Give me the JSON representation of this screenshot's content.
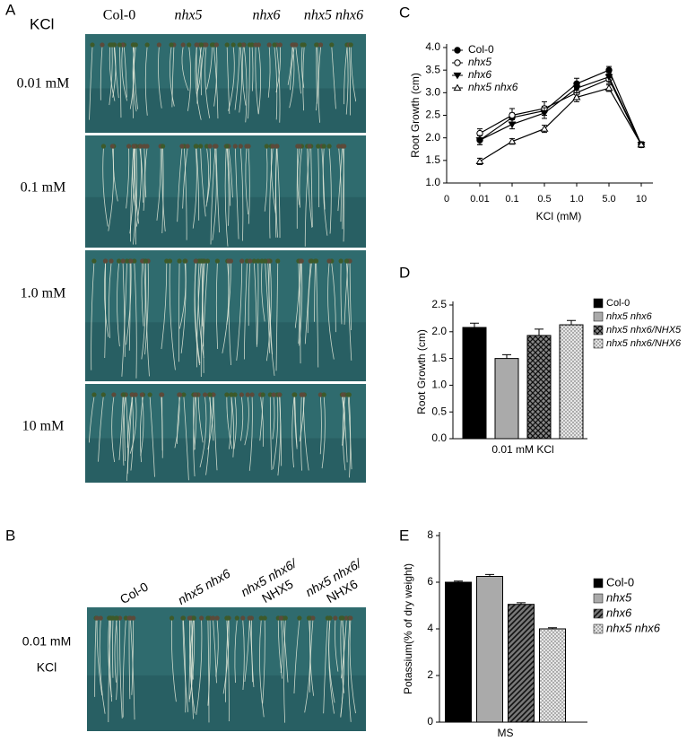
{
  "panel_a": {
    "label": "A",
    "row_header": "KCl",
    "columns": [
      "Col-0",
      "nhx5",
      "nhx6",
      "nhx5 nhx6"
    ],
    "rows": [
      "0.01 mM",
      "0.1 mM",
      "1.0 mM",
      "10 mM"
    ]
  },
  "panel_b": {
    "label": "B",
    "columns": [
      [
        "Col-0"
      ],
      [
        "nhx5 nhx6"
      ],
      [
        "nhx5 nhx6/",
        "NHX5"
      ],
      [
        "nhx5 nhx6/",
        "NHX6"
      ]
    ],
    "rows": [
      "0.01 mM",
      "KCl"
    ]
  },
  "chart_data": [
    {
      "type": "line",
      "label": "C",
      "x_label": "KCl (mM)",
      "y_label": "Root Growth (cm)",
      "categories": [
        "0",
        "0.01",
        "0.1",
        "0.5",
        "1.0",
        "5.0",
        "10"
      ],
      "ylim": [
        1,
        4
      ],
      "yticks": [
        {
          "value": 1,
          "label": "1.0"
        },
        1.5,
        {
          "value": 2,
          "label": "2.0"
        },
        2.5,
        {
          "value": 3,
          "label": "3.0"
        },
        3.5,
        {
          "value": 4,
          "label": "4.0"
        }
      ],
      "legend": "top-left",
      "series": [
        {
          "name": "Col-0",
          "color": "#000000",
          "marker": "circle-filled",
          "values": [
            null,
            1.95,
            2.45,
            2.6,
            3.2,
            3.5,
            1.85
          ],
          "errors": [
            null,
            0.1,
            0.1,
            0.1,
            0.12,
            0.08,
            0.06
          ]
        },
        {
          "name": "nhx5",
          "color": "#000000",
          "marker": "circle-open",
          "values": [
            null,
            2.1,
            2.5,
            2.65,
            3.0,
            3.3,
            1.85
          ],
          "errors": [
            null,
            0.1,
            0.15,
            0.15,
            0.1,
            0.1,
            0.06
          ]
        },
        {
          "name": "nhx6",
          "color": "#000000",
          "marker": "triangle-down-filled",
          "values": [
            null,
            1.95,
            2.3,
            2.55,
            3.1,
            3.35,
            1.85
          ],
          "errors": [
            null,
            0.1,
            0.1,
            0.12,
            0.1,
            0.1,
            0.06
          ]
        },
        {
          "name": "nhx5 nhx6",
          "color": "#000000",
          "marker": "triangle-up-open",
          "values": [
            null,
            1.48,
            1.92,
            2.2,
            2.9,
            3.1,
            1.85
          ],
          "errors": [
            null,
            0.07,
            0.06,
            0.08,
            0.1,
            0.07,
            0.06
          ]
        }
      ]
    },
    {
      "type": "bar",
      "label": "D",
      "y_label": "Root Growth (cm)",
      "categories": [
        "0.01 mM KCl"
      ],
      "ylim": [
        0,
        2.5
      ],
      "yticks": [
        {
          "value": 0,
          "label": "0.0"
        },
        0.5,
        {
          "value": 1,
          "label": "1.0"
        },
        1.5,
        {
          "value": 2,
          "label": "2.0"
        },
        2.5
      ],
      "legend": "right",
      "series": [
        {
          "name": "Col-0",
          "color": "#000000",
          "pattern": "solid",
          "values": [
            2.08
          ],
          "errors": [
            0.08
          ]
        },
        {
          "name": "nhx5 nhx6",
          "color": "#aaaaaa",
          "pattern": "solid",
          "values": [
            1.5
          ],
          "errors": [
            0.07
          ]
        },
        {
          "name": "nhx5 nhx6/NHX5",
          "color": "#444444",
          "pattern": "crosshatch",
          "values": [
            1.93
          ],
          "errors": [
            0.12
          ]
        },
        {
          "name": "nhx5 nhx6/NHX6",
          "color": "#bbbbbb",
          "pattern": "dots",
          "values": [
            2.13
          ],
          "errors": [
            0.08
          ]
        }
      ]
    },
    {
      "type": "bar",
      "label": "E",
      "y_label": "Potassium(% of dry weight)",
      "categories": [
        "MS"
      ],
      "ylim": [
        0,
        8
      ],
      "yticks": [
        0,
        2,
        4,
        6,
        8
      ],
      "legend": "right",
      "series": [
        {
          "name": "Col-0",
          "color": "#000000",
          "pattern": "solid",
          "values": [
            6.0
          ],
          "errors": [
            0.05
          ]
        },
        {
          "name": "nhx5",
          "color": "#aaaaaa",
          "pattern": "solid",
          "values": [
            6.25
          ],
          "errors": [
            0.08
          ]
        },
        {
          "name": "nhx6",
          "color": "#444444",
          "pattern": "diagonal",
          "values": [
            5.05
          ],
          "errors": [
            0.07
          ]
        },
        {
          "name": "nhx5 nhx6",
          "color": "#cccccc",
          "pattern": "dots",
          "values": [
            4.0
          ],
          "errors": [
            0.05
          ]
        }
      ]
    }
  ]
}
